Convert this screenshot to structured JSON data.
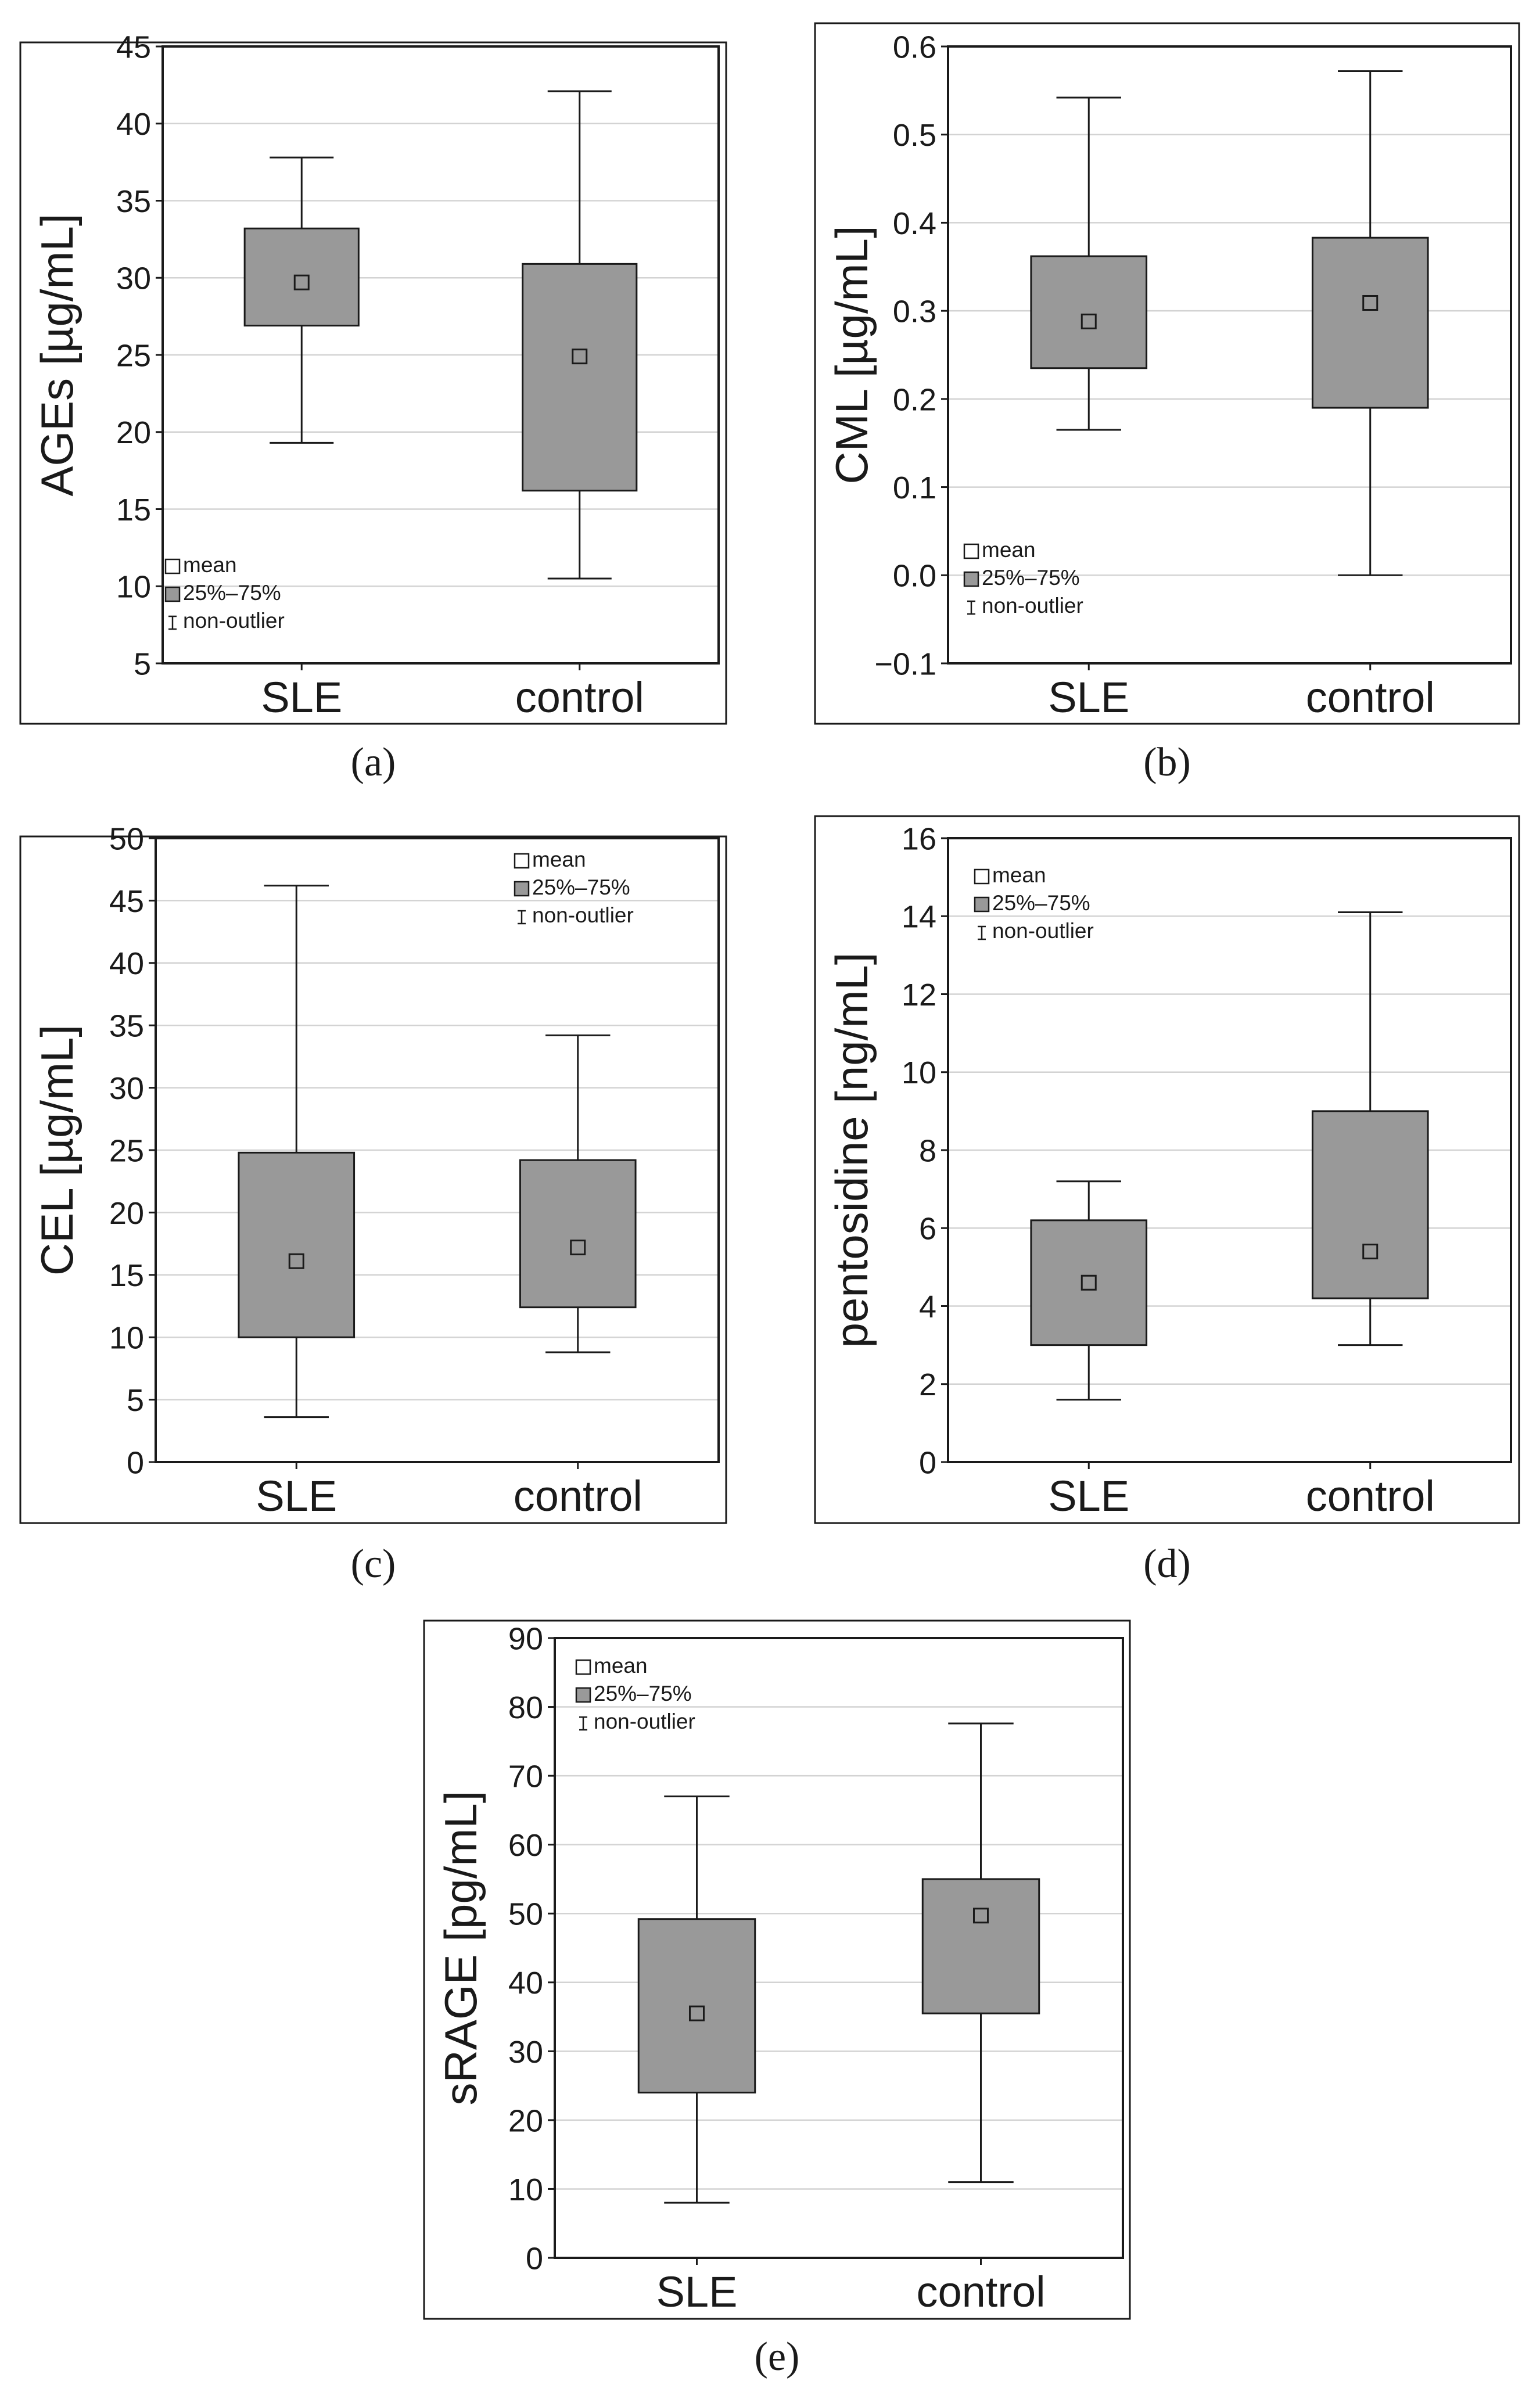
{
  "chart_data": [
    {
      "type": "box",
      "panel_label": "(a)",
      "ylabel": "AGEs [µg/mL]",
      "ylim": [
        5,
        45
      ],
      "yticks": [
        5,
        10,
        15,
        20,
        25,
        30,
        35,
        40,
        45
      ],
      "ytick_labels": [
        "5",
        "10",
        "15",
        "20",
        "25",
        "30",
        "35",
        "40",
        "45"
      ],
      "grid": true,
      "legend_position": "bottom-left",
      "legend": [
        "mean",
        "25%–75%",
        "non-outlier"
      ],
      "categories": [
        "SLE",
        "control"
      ],
      "groups": [
        {
          "name": "SLE",
          "min": 19.3,
          "q1": 26.9,
          "mean": 29.7,
          "q3": 33.2,
          "max": 37.8
        },
        {
          "name": "control",
          "min": 10.5,
          "q1": 16.2,
          "mean": 24.9,
          "q3": 30.9,
          "max": 42.1
        }
      ]
    },
    {
      "type": "box",
      "panel_label": "(b)",
      "ylabel": "CML [µg/mL]",
      "ylim": [
        -0.1,
        0.6
      ],
      "yticks": [
        -0.1,
        0.0,
        0.1,
        0.2,
        0.3,
        0.4,
        0.5,
        0.6
      ],
      "ytick_labels": [
        "−0.1",
        "0.0",
        "0.1",
        "0.2",
        "0.3",
        "0.4",
        "0.5",
        "0.6"
      ],
      "grid": true,
      "legend_position": "bottom-left",
      "legend": [
        "mean",
        "25%–75%",
        "non-outlier"
      ],
      "categories": [
        "SLE",
        "control"
      ],
      "groups": [
        {
          "name": "SLE",
          "min": 0.165,
          "q1": 0.235,
          "mean": 0.288,
          "q3": 0.362,
          "max": 0.542
        },
        {
          "name": "control",
          "min": 0.0,
          "q1": 0.19,
          "mean": 0.309,
          "q3": 0.383,
          "max": 0.572
        }
      ]
    },
    {
      "type": "box",
      "panel_label": "(c)",
      "ylabel": "CEL [µg/mL]",
      "ylim": [
        0,
        50
      ],
      "yticks": [
        0,
        5,
        10,
        15,
        20,
        25,
        30,
        35,
        40,
        45,
        50
      ],
      "ytick_labels": [
        "0",
        "5",
        "10",
        "15",
        "20",
        "25",
        "30",
        "35",
        "40",
        "45",
        "50"
      ],
      "grid": true,
      "legend_position": "top-right",
      "legend": [
        "mean",
        "25%–75%",
        "non-outlier"
      ],
      "categories": [
        "SLE",
        "control"
      ],
      "groups": [
        {
          "name": "SLE",
          "min": 3.6,
          "q1": 10.0,
          "mean": 16.1,
          "q3": 24.8,
          "max": 46.2
        },
        {
          "name": "control",
          "min": 8.8,
          "q1": 12.4,
          "mean": 17.2,
          "q3": 24.2,
          "max": 34.2
        }
      ]
    },
    {
      "type": "box",
      "panel_label": "(d)",
      "ylabel": "pentosidine [ng/mL]",
      "ylim": [
        0,
        16
      ],
      "yticks": [
        0,
        2,
        4,
        6,
        8,
        10,
        12,
        14,
        16
      ],
      "ytick_labels": [
        "0",
        "2",
        "4",
        "6",
        "8",
        "10",
        "12",
        "14",
        "16"
      ],
      "grid": true,
      "legend_position": "top-left",
      "legend": [
        "mean",
        "25%–75%",
        "non-outlier"
      ],
      "categories": [
        "SLE",
        "control"
      ],
      "groups": [
        {
          "name": "SLE",
          "min": 1.6,
          "q1": 3.0,
          "mean": 4.6,
          "q3": 6.2,
          "max": 7.2
        },
        {
          "name": "control",
          "min": 3.0,
          "q1": 4.2,
          "mean": 5.4,
          "q3": 9.0,
          "max": 14.1
        }
      ]
    },
    {
      "type": "box",
      "panel_label": "(e)",
      "ylabel": "sRAGE [pg/mL]",
      "ylim": [
        0,
        90
      ],
      "yticks": [
        0,
        10,
        20,
        30,
        40,
        50,
        60,
        70,
        80,
        90
      ],
      "ytick_labels": [
        "0",
        "10",
        "20",
        "30",
        "40",
        "50",
        "60",
        "70",
        "80",
        "90"
      ],
      "grid": true,
      "legend_position": "top-left",
      "legend": [
        "mean",
        "25%–75%",
        "non-outlier"
      ],
      "categories": [
        "SLE",
        "control"
      ],
      "groups": [
        {
          "name": "SLE",
          "min": 8.0,
          "q1": 24.0,
          "mean": 35.5,
          "q3": 49.2,
          "max": 67.0
        },
        {
          "name": "control",
          "min": 11.0,
          "q1": 35.5,
          "mean": 49.7,
          "q3": 55.0,
          "max": 77.6
        }
      ]
    }
  ],
  "colors": {
    "box_fill": "#999999",
    "line": "#1a1a1a",
    "grid": "#d3d3d3",
    "frame": "#1a1a1a"
  }
}
